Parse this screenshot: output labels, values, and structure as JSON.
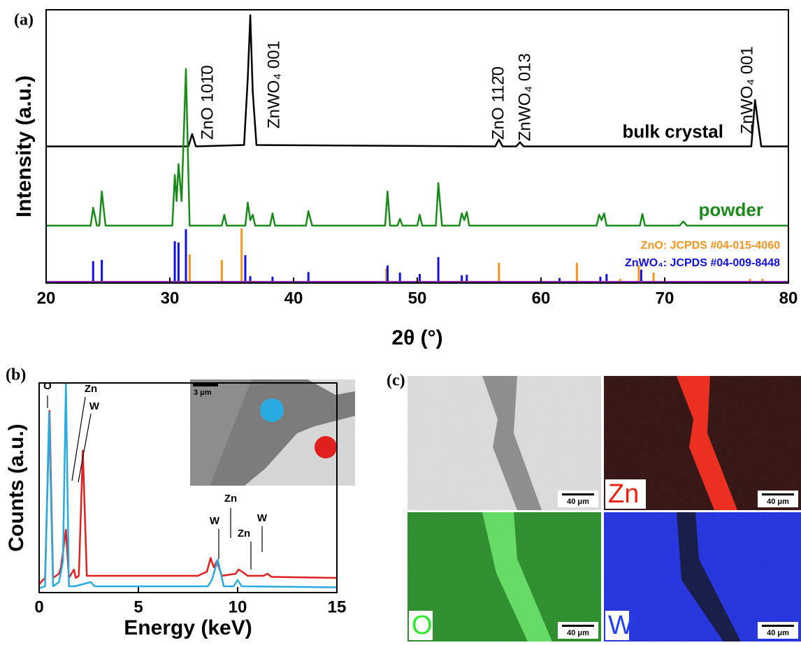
{
  "chart_data": [
    {
      "type": "line",
      "panel": "(a)",
      "xlabel": "2θ (°)",
      "ylabel": "Intensity (a.u.)",
      "xlim": [
        20,
        80
      ],
      "ylim": [
        0,
        100
      ],
      "xticks": [
        20,
        30,
        40,
        50,
        60,
        70,
        80
      ],
      "series": [
        {
          "name": "bulk crystal",
          "color": "#000000",
          "x": [
            20,
            31.5,
            31.8,
            32.1,
            36.0,
            36.3,
            36.5,
            36.7,
            37.0,
            56.3,
            56.6,
            56.9,
            58.0,
            58.3,
            58.6,
            77.0,
            77.3,
            77.5,
            77.8,
            80
          ],
          "values": [
            50,
            50,
            54.5,
            50,
            50.5,
            75,
            98,
            70,
            50.5,
            50,
            52.5,
            50,
            50,
            51.5,
            50,
            50,
            67,
            60,
            50,
            50
          ]
        },
        {
          "name": "powder",
          "color": "#1a8a1a",
          "x": [
            20,
            23.6,
            23.8,
            24.1,
            24.3,
            24.5,
            24.8,
            30.2,
            30.4,
            30.55,
            30.7,
            30.95,
            31.3,
            31.6,
            34.2,
            34.4,
            34.6,
            36.1,
            36.3,
            36.5,
            36.7,
            36.9,
            38.1,
            38.3,
            38.5,
            41.0,
            41.2,
            41.5,
            47.4,
            47.6,
            47.8,
            48.4,
            48.6,
            48.8,
            50.0,
            50.2,
            50.4,
            51.5,
            51.7,
            52.0,
            53.4,
            53.6,
            53.8,
            54.0,
            54.2,
            64.5,
            64.7,
            64.9,
            65.1,
            65.3,
            68.0,
            68.2,
            68.4,
            71.2,
            71.5,
            71.8,
            80
          ],
          "values": [
            21,
            21,
            27.6,
            21,
            21,
            33.5,
            21,
            21,
            39.6,
            30,
            43.5,
            30,
            78.3,
            21,
            21,
            25,
            21,
            21,
            29.4,
            23,
            25,
            21,
            21,
            25.5,
            21,
            21,
            26.3,
            21,
            21,
            33.5,
            21,
            21,
            23.5,
            21,
            21,
            25,
            21,
            21,
            36.6,
            21,
            21,
            25.5,
            23,
            26,
            21,
            21,
            25,
            23,
            25.5,
            21,
            21,
            25.3,
            21,
            21,
            22.5,
            21,
            21
          ]
        },
        {
          "name": "ZnO: JCPDS #04-015-4060",
          "color": "#f7941d",
          "style": "sticks",
          "x": [
            31.6,
            34.2,
            35.8,
            47.5,
            56.6,
            62.9,
            66.4,
            67.9,
            69.1,
            72.6,
            76.9,
            77.9
          ],
          "values": [
            10.5,
            8.4,
            20,
            5.4,
            7.4,
            7.4,
            1.5,
            6.4,
            3.8,
            0.8,
            1.5,
            1.5
          ]
        },
        {
          "name": "ZnWO₄: JCPDS #04-009-8448",
          "color": "#1010e0",
          "style": "sticks",
          "x": [
            23.8,
            24.5,
            30.4,
            30.7,
            31.3,
            36.1,
            36.5,
            38.3,
            41.2,
            47.6,
            48.6,
            50.2,
            51.7,
            53.6,
            54.0,
            61.5,
            64.8,
            65.3,
            68.1
          ],
          "values": [
            8,
            8.5,
            15.3,
            14.8,
            19.7,
            10.2,
            2.5,
            2.3,
            4,
            6.4,
            3.8,
            3.3,
            9.5,
            2.8,
            3,
            1.8,
            2.3,
            3.3,
            4.9
          ]
        }
      ],
      "annotations": [
        "ZnO 101̄0",
        "ZnWO₄ 001",
        "ZnO 112̄0",
        "ZnWO₄ 013",
        "ZnWO₄ 001"
      ]
    },
    {
      "type": "line",
      "panel": "(b)",
      "xlabel": "Energy (keV)",
      "ylabel": "Counts (a.u.)",
      "xlim": [
        0,
        15
      ],
      "ylim": [
        0,
        100
      ],
      "xticks": [
        0,
        5,
        10,
        15
      ],
      "series": [
        {
          "color": "#e0201e",
          "x": [
            0,
            0.3,
            0.52,
            0.7,
            1.0,
            1.1,
            1.35,
            1.5,
            1.75,
            1.85,
            2.0,
            2.2,
            2.4,
            2.7,
            8.0,
            8.45,
            8.64,
            8.8,
            8.95,
            9.2,
            9.9,
            10.05,
            10.3,
            10.5,
            11.3,
            11.5,
            11.7,
            15
          ],
          "values": [
            4,
            7,
            86.7,
            7,
            9,
            12,
            30,
            7,
            11,
            7,
            8,
            67.7,
            8,
            8,
            8,
            10,
            16.5,
            12,
            15,
            8,
            9,
            11,
            9.5,
            8,
            8,
            9,
            7.5,
            7
          ]
        },
        {
          "color": "#29aae1",
          "x": [
            0,
            0.3,
            0.5,
            0.7,
            1.0,
            1.2,
            1.35,
            1.5,
            1.8,
            2.6,
            2.8,
            8.5,
            8.7,
            9.0,
            9.3,
            9.8,
            10.0,
            10.2,
            15
          ],
          "values": [
            2,
            3,
            86,
            3,
            5,
            15,
            100,
            3,
            3,
            5,
            3,
            3,
            6,
            15.7,
            3,
            3,
            6,
            3,
            2.5
          ]
        }
      ],
      "annotations": [
        "O",
        "Zn",
        "W",
        "Zn",
        "W",
        "Zn",
        "W"
      ],
      "inset": {
        "scale_bar": "3 μm"
      }
    }
  ],
  "panel_c": {
    "label": "(c)",
    "images": [
      {
        "scale_bar": "40 μm"
      },
      {
        "label": "Zn",
        "scale_bar": "40 μm"
      },
      {
        "label": "O",
        "scale_bar": "40 μm"
      },
      {
        "label": "W",
        "scale_bar": "40 μm"
      }
    ]
  }
}
